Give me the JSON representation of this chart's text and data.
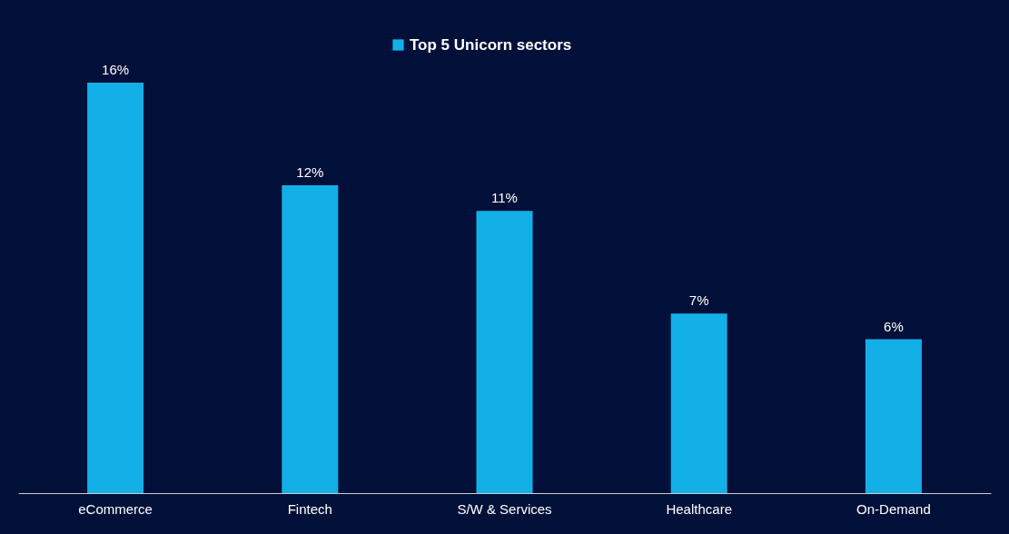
{
  "chart_data": {
    "type": "bar",
    "categories": [
      "eCommerce",
      "Fintech",
      "S/W & Services",
      "Healthcare",
      "On-Demand"
    ],
    "series": [
      {
        "name": "Top 5 Unicorn sectors",
        "color": "#12b0e6",
        "values": [
          16,
          12,
          11,
          7,
          6
        ],
        "value_labels": [
          "16%",
          "12%",
          "11%",
          "7%",
          "6%"
        ]
      }
    ],
    "legend": "top",
    "grid": false,
    "tick_labels": "x"
  }
}
